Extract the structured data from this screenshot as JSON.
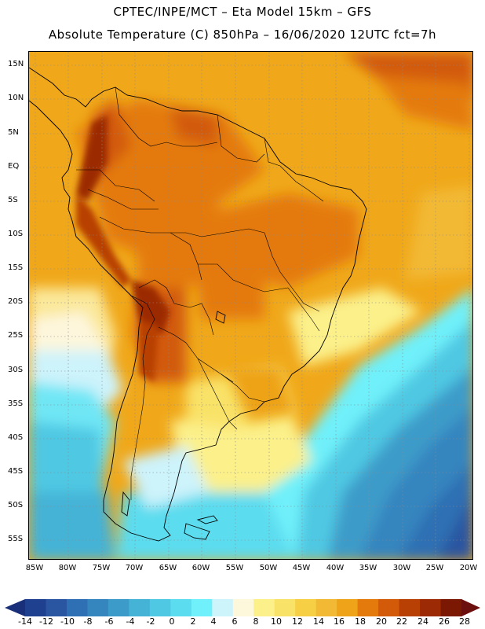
{
  "header": {
    "title_line1": "CPTEC/INPE/MCT –  Eta Model 15km – GFS",
    "title_line2": "Absolute Temperature (C) 850hPa – 16/06/2020 12UTC fct=7h"
  },
  "map": {
    "latitude_labels": [
      "15N",
      "10N",
      "5N",
      "EQ",
      "5S",
      "10S",
      "15S",
      "20S",
      "25S",
      "30S",
      "35S",
      "40S",
      "45S",
      "50S",
      "55S"
    ],
    "longitude_labels": [
      "85W",
      "80W",
      "75W",
      "70W",
      "65W",
      "60W",
      "55W",
      "50W",
      "45W",
      "40W",
      "35W",
      "30W",
      "25W",
      "20W"
    ]
  },
  "colorbar": {
    "labels": [
      "-14",
      "-12",
      "-10",
      "-8",
      "-6",
      "-4",
      "-2",
      "0",
      "2",
      "4",
      "6",
      "8",
      "10",
      "12",
      "14",
      "16",
      "18",
      "20",
      "22",
      "24",
      "26",
      "28"
    ],
    "colors": [
      "#1f3f8f",
      "#2a55a0",
      "#2f6fb3",
      "#3585bf",
      "#3c9bc9",
      "#44b3d6",
      "#4fc8e3",
      "#5cdcef",
      "#6ff0fa",
      "#cdf3fb",
      "#fdf7dc",
      "#fbf08a",
      "#f9e268",
      "#f6cf45",
      "#f2b935",
      "#eea318",
      "#e47a0b",
      "#d25a08",
      "#b84005",
      "#9c2a04",
      "#7a1803"
    ],
    "low_color": "#1a2f7a",
    "high_color": "#6b0f0f"
  }
}
